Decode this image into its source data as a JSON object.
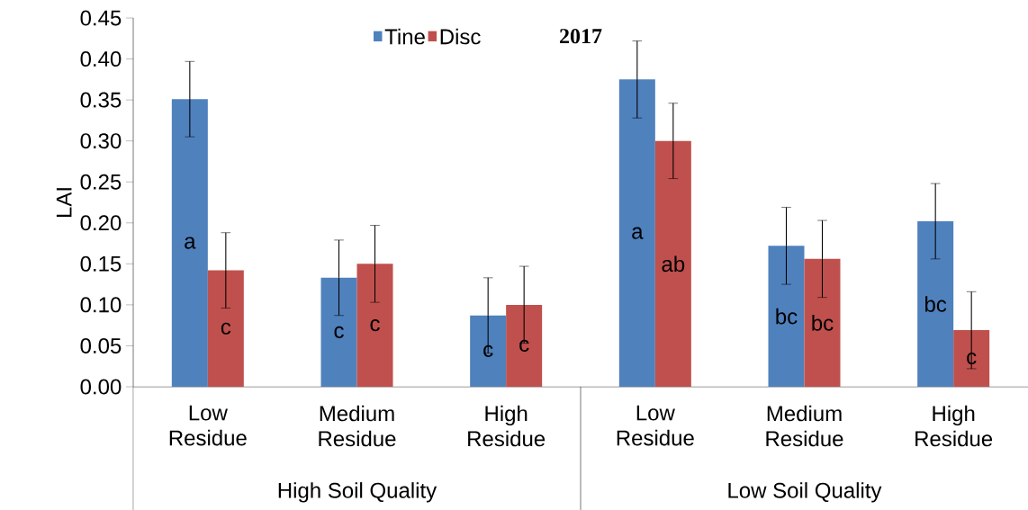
{
  "chart_data": {
    "type": "bar",
    "title": "2017",
    "ylabel": "LAI",
    "categories": [
      "Low Residue",
      "Medium Residue",
      "High Residue",
      "Low Residue",
      "Medium Residue",
      "High Residue"
    ],
    "annotations": [
      "High Soil Quality",
      "Low Soil Quality"
    ],
    "series": [
      {
        "name": "Tine",
        "color": "#4f81bd",
        "values": [
          0.351,
          0.133,
          0.087,
          0.375,
          0.172,
          0.202
        ],
        "errors": [
          0.046,
          0.046,
          0.046,
          0.047,
          0.047,
          0.046
        ],
        "value_labels": [
          "a",
          "c",
          "c",
          "a",
          "bc",
          "bc"
        ]
      },
      {
        "name": "Disc",
        "color": "#c0504d",
        "values": [
          0.142,
          0.15,
          0.1,
          0.3,
          0.156,
          0.069
        ],
        "errors": [
          0.046,
          0.047,
          0.047,
          0.046,
          0.047,
          0.047
        ],
        "value_labels": [
          "c",
          "c",
          "c",
          "ab",
          "bc",
          "c"
        ]
      }
    ],
    "ylim": [
      0,
      0.45
    ],
    "yticks": [
      {
        "value": 0,
        "label": "0.00"
      },
      {
        "value": 0.05,
        "label": "0.05"
      },
      {
        "value": 0.1,
        "label": "0.10"
      },
      {
        "value": 0.15,
        "label": "0.15"
      },
      {
        "value": 0.2,
        "label": "0.20"
      },
      {
        "value": 0.25,
        "label": "0.25"
      },
      {
        "value": 0.3,
        "label": "0.30"
      },
      {
        "value": 0.35,
        "label": "0.35"
      },
      {
        "value": 0.4,
        "label": "0.40"
      },
      {
        "value": 0.45,
        "label": "0.45"
      }
    ],
    "legend": "top",
    "grid": false
  }
}
